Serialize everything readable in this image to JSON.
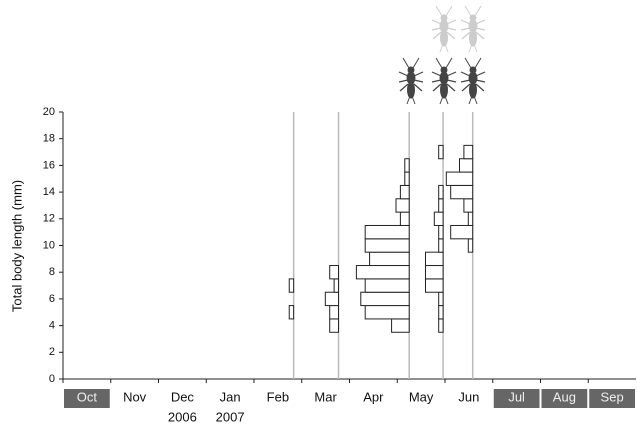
{
  "chart_data": {
    "type": "size-frequency",
    "y_label": "Total body length (mm)",
    "categories": [
      "Oct",
      "Nov",
      "Dec",
      "Jan",
      "Feb",
      "Mar",
      "Apr",
      "May",
      "Jun",
      "Jul",
      "Aug",
      "Sep"
    ],
    "year_labels": [
      null,
      null,
      "2006",
      "2007",
      null,
      null,
      null,
      null,
      null,
      null,
      null,
      null
    ],
    "shaded": [
      true,
      false,
      false,
      false,
      false,
      false,
      false,
      false,
      false,
      true,
      true,
      true
    ],
    "ylim": [
      0,
      20
    ],
    "yticks": [
      0,
      2,
      4,
      6,
      8,
      10,
      12,
      14,
      16,
      18,
      20
    ],
    "xlim": [
      -0.5,
      11.5
    ],
    "samples": [
      {
        "x": 4.33,
        "lengths": [
          5,
          7
        ],
        "counts": [
          1,
          1
        ]
      },
      {
        "x": 5.27,
        "lengths": [
          4,
          5,
          6,
          7,
          8
        ],
        "counts": [
          2,
          2,
          3,
          1,
          2
        ]
      },
      {
        "x": 6.75,
        "lengths": [
          4,
          5,
          6,
          7,
          8,
          9,
          10,
          11,
          12,
          13,
          14,
          15,
          16
        ],
        "counts": [
          4,
          10,
          11,
          10,
          12,
          9,
          10,
          10,
          2,
          3,
          2,
          1,
          1
        ]
      },
      {
        "x": 7.46,
        "lengths": [
          4,
          5,
          6,
          7,
          8,
          9,
          10,
          11,
          12,
          13,
          14,
          17
        ],
        "counts": [
          1,
          1,
          1,
          4,
          4,
          4,
          1,
          1,
          2,
          1,
          1,
          1
        ]
      },
      {
        "x": 8.08,
        "lengths": [
          10,
          11,
          12,
          13,
          14,
          15,
          16,
          17
        ],
        "counts": [
          1,
          5,
          1,
          2,
          5,
          6,
          3,
          2
        ]
      }
    ],
    "bar_color": "#ffffff",
    "line_color": "#bbbbbb"
  }
}
